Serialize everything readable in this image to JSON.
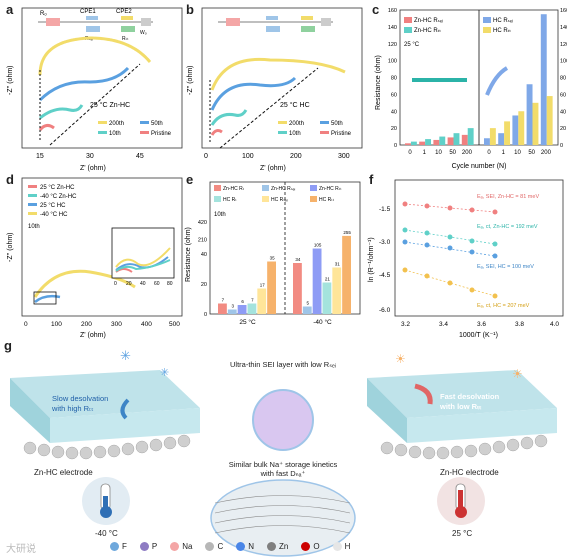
{
  "panels": {
    "a": {
      "label": "a",
      "xlabel": "Z' (ohm)",
      "ylabel": "-Z'' (ohm)",
      "note": "25 °C Zn-HC",
      "xticks": [
        "15",
        "30",
        "45"
      ],
      "circuit": {
        "r": "Rₒ",
        "cpe1": "CPE1",
        "cpe2": "CPE2",
        "rsei": "Rₛₑᵢ",
        "rct": "Rₜₜ",
        "w": "Wₒ"
      },
      "legend": [
        "200th",
        "50th",
        "10th",
        "Pristine"
      ]
    },
    "b": {
      "label": "b",
      "xlabel": "Z' (ohm)",
      "ylabel": "-Z'' (ohm)",
      "note": "25 °C HC",
      "xticks": [
        "0",
        "100",
        "200",
        "300"
      ],
      "legend": [
        "200th",
        "50th",
        "10th",
        "Pristine"
      ]
    },
    "d": {
      "label": "d",
      "xlabel": "Z' (ohm)",
      "ylabel": "-Z'' (ohm)",
      "note": "10th",
      "xticks": [
        "0",
        "100",
        "200",
        "300",
        "400",
        "500"
      ],
      "legend": [
        "25 °C Zn-HC",
        "-40 °C Zn-HC",
        "25 °C HC",
        "-40 °C HC"
      ],
      "inset_xticks": [
        "0",
        "20",
        "40",
        "60",
        "80"
      ]
    },
    "f": {
      "label": "f",
      "xlabel": "1000/T (K⁻¹)",
      "ylabel": "ln (R⁻¹/ohm⁻¹)",
      "xticks": [
        "3.2",
        "3.4",
        "3.6",
        "3.8",
        "4.0"
      ],
      "yticks": [
        "-1.5",
        "-3.0",
        "-4.5",
        "-6.0"
      ],
      "annotations": [
        "Eₐ, SEI, Zn-HC = 81 meV",
        "Eₐ, ct, Zn-HC = 192 meV",
        "Eₐ, SEI, HC = 100 meV",
        "Eₐ, ct, HC = 207 meV"
      ]
    },
    "g": {
      "label": "g",
      "top_text": "Ultra-thin SEI layer with low Rₛₑᵢ",
      "mid_text_1": "Similar bulk Na⁺ storage kinetics",
      "mid_text_2": "with fast Dₙₐ⁺",
      "left_text_1": "Slow desolvation",
      "left_text_2": "with high Rₜₜ",
      "right_text_1": "Fast desolvation",
      "right_text_2": "with low Rₜₜ",
      "left_electrode": "Zn-HC electrode",
      "right_electrode": "Zn-HC electrode",
      "left_temp": "-40 °C",
      "right_temp": "25 °C",
      "legend": [
        "F",
        "P",
        "Na",
        "C",
        "N",
        "Zn",
        "O",
        "H"
      ],
      "legend_colors": [
        "#6fa8dc",
        "#8e7cc3",
        "#f4a6a6",
        "#b7b7b7",
        "#4a86e8",
        "#7f7f7f",
        "#cc0000",
        "#e6e6e6"
      ],
      "watermark": "大研说"
    }
  },
  "chart_data": [
    {
      "panel": "c",
      "type": "bar",
      "title": "",
      "xlabel": "Cycle number (N)",
      "ylabel": "Resistance (ohm)",
      "ylim": [
        0,
        160
      ],
      "yticks": [
        "0",
        "20",
        "40",
        "60",
        "80",
        "100",
        "120",
        "140",
        "160"
      ],
      "temperature": "25 °C",
      "groups": [
        {
          "name": "Zn-HC",
          "categories": [
            "0",
            "1",
            "10",
            "50",
            "200"
          ],
          "series": [
            {
              "name": "Zn-HC Rₛₑᵢ",
              "color": "#f08080",
              "values": [
                2,
                4,
                6,
                9,
                12
              ]
            },
            {
              "name": "Zn-HC Rₜₜ",
              "color": "#5fd0c8",
              "values": [
                4,
                7,
                10,
                14,
                20
              ]
            }
          ]
        },
        {
          "name": "HC",
          "categories": [
            "0",
            "1",
            "10",
            "50",
            "200"
          ],
          "series": [
            {
              "name": "HC Rₛₑᵢ",
              "color": "#7fa8e8",
              "values": [
                8,
                14,
                35,
                72,
                155
              ]
            },
            {
              "name": "HC Rₜₜ",
              "color": "#f2dc6a",
              "values": [
                20,
                28,
                40,
                50,
                58
              ]
            }
          ]
        }
      ]
    },
    {
      "panel": "e",
      "type": "bar",
      "title": "",
      "xlabel": "",
      "ylabel": "Resistance (ohm)",
      "note": "10th",
      "categories": [
        "25 °C",
        "-40 °C"
      ],
      "yticks": [
        "0",
        "20",
        "40",
        "210",
        "420"
      ],
      "series": [
        {
          "name": "Zn-HC Rₜ",
          "color": "#f28b82",
          "values": [
            7,
            34
          ]
        },
        {
          "name": "Zn-HC Rₛₑᵢ",
          "color": "#9fc5e8",
          "values": [
            3,
            5
          ]
        },
        {
          "name": "Zn-HC Rₜₜ",
          "color": "#8e9cf5",
          "values": [
            6,
            105
          ]
        },
        {
          "name": "HC Rₜ",
          "color": "#a4e3dd",
          "values": [
            7,
            21
          ]
        },
        {
          "name": "HC Rₛₑᵢ",
          "color": "#ffe599",
          "values": [
            17,
            31
          ]
        },
        {
          "name": "HC Rₜₜ",
          "color": "#f6b26b",
          "values": [
            35,
            255
          ]
        }
      ]
    }
  ]
}
